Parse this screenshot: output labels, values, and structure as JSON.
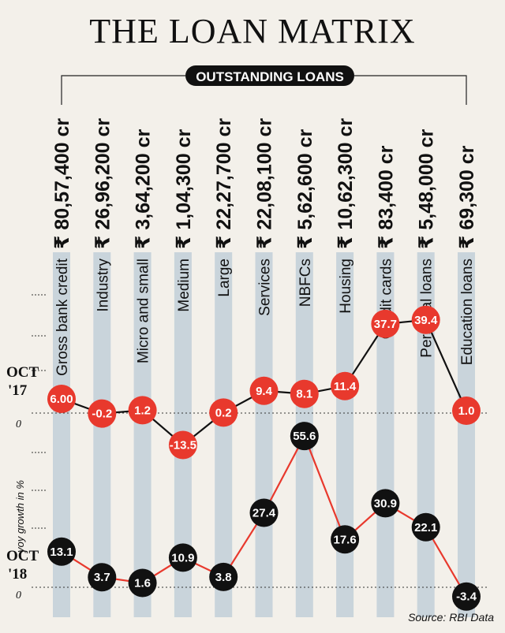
{
  "title": "THE LOAN MATRIX",
  "subtitle": "OUTSTANDING LOANS",
  "source": "Source: RBI Data",
  "colors": {
    "oct17": "#e8392d",
    "oct18": "#111111",
    "column": "#c9d4db",
    "background": "#f3f0ea"
  },
  "chart_data": {
    "type": "line",
    "title": "THE LOAN MATRIX",
    "subtitle": "OUTSTANDING LOANS",
    "ylabel": "yoy growth in %",
    "categories": [
      "Gross bank credit",
      "Industry",
      "Micro and small",
      "Medium",
      "Large",
      "Services",
      "NBFCs",
      "Housing",
      "Credit cards",
      "Personal loans",
      "Education loans"
    ],
    "outstanding_loans": [
      "₹ 80,57,400 cr",
      "₹ 26,96,200 cr",
      "₹ 3,64,200 cr",
      "₹ 1,04,300 cr",
      "₹ 22,27,700 cr",
      "₹ 22,08,100 cr",
      "₹ 5,62,600 cr",
      "₹ 10,62,300 cr",
      "₹ 83,400 cr",
      "₹ 5,48,000 cr",
      "₹ 69,300 cr"
    ],
    "series": [
      {
        "name": "OCT '17",
        "labels": [
          "6.00",
          "-0.2",
          "1.2",
          "-13.5",
          "0.2",
          "9.4",
          "8.1",
          "11.4",
          "37.7",
          "39.4",
          "1.0"
        ],
        "values": [
          6.0,
          -0.2,
          1.2,
          -13.5,
          0.2,
          9.4,
          8.1,
          11.4,
          37.7,
          39.4,
          1.0
        ]
      },
      {
        "name": "OCT '18",
        "labels": [
          "13.1",
          "3.7",
          "1.6",
          "10.9",
          "3.8",
          "27.4",
          "55.6",
          "17.6",
          "30.9",
          "22.1",
          "-3.4"
        ],
        "values": [
          13.1,
          3.7,
          1.6,
          10.9,
          3.8,
          27.4,
          55.6,
          17.6,
          30.9,
          22.1,
          -3.4
        ]
      }
    ],
    "zero_label": "0",
    "series_label_lines": [
      [
        "OCT",
        "'17"
      ],
      [
        "OCT",
        "'18"
      ]
    ]
  }
}
